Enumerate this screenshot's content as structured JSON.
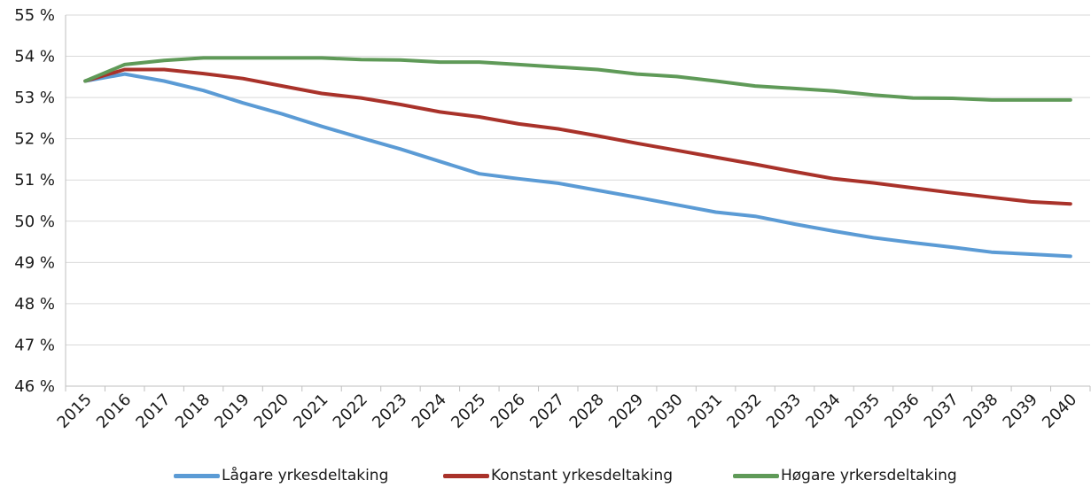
{
  "chart_data": {
    "type": "line",
    "title": "",
    "xlabel": "",
    "ylabel": "",
    "categories": [
      "2015",
      "2016",
      "2017",
      "2018",
      "2019",
      "2020",
      "2021",
      "2022",
      "2023",
      "2024",
      "2025",
      "2026",
      "2027",
      "2028",
      "2029",
      "2030",
      "2031",
      "2032",
      "2033",
      "2034",
      "2035",
      "2036",
      "2037",
      "2038",
      "2039",
      "2040"
    ],
    "ylim": [
      46,
      55
    ],
    "yticks": [
      46,
      47,
      48,
      49,
      50,
      51,
      52,
      53,
      54,
      55
    ],
    "ytick_suffix": " %",
    "grid": "horizontal",
    "legend_position": "bottom",
    "series": [
      {
        "name": "Lågare yrkesdeltaking",
        "color": "#5b9bd5",
        "values": [
          53.4,
          53.57,
          53.4,
          53.17,
          52.87,
          52.6,
          52.3,
          52.02,
          51.75,
          51.45,
          51.15,
          51.03,
          50.92,
          50.75,
          50.58,
          50.4,
          50.22,
          50.12,
          49.93,
          49.76,
          49.6,
          49.48,
          49.37,
          49.25,
          49.2,
          49.15
        ]
      },
      {
        "name": "Konstant yrkesdeltaking",
        "color": "#a9322a",
        "values": [
          53.4,
          53.68,
          53.68,
          53.58,
          53.46,
          53.28,
          53.1,
          52.99,
          52.83,
          52.65,
          52.53,
          52.36,
          52.24,
          52.07,
          51.89,
          51.72,
          51.55,
          51.38,
          51.2,
          51.03,
          50.93,
          50.81,
          50.69,
          50.58,
          50.47,
          50.42
        ]
      },
      {
        "name": "Høgare yrkersdeltaking",
        "color": "#5f9a58",
        "values": [
          53.4,
          53.8,
          53.9,
          53.96,
          53.96,
          53.96,
          53.96,
          53.92,
          53.91,
          53.86,
          53.86,
          53.8,
          53.74,
          53.68,
          53.57,
          53.51,
          53.4,
          53.28,
          53.22,
          53.16,
          53.06,
          52.99,
          52.98,
          52.94,
          52.94,
          52.94
        ]
      }
    ]
  }
}
